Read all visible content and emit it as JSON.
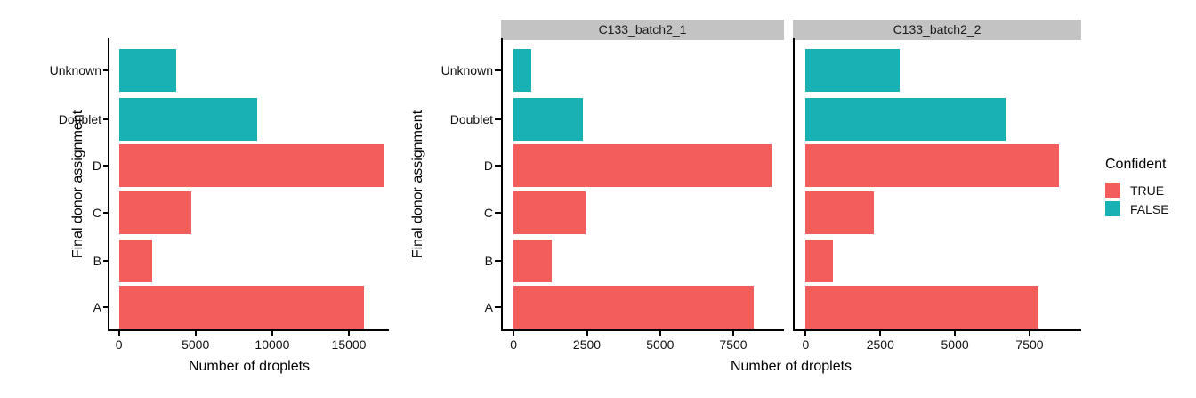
{
  "figure": {
    "background": "#FFFFFF"
  },
  "colors": {
    "confident_true": "#F35E5C",
    "confident_false": "#18B2B5",
    "strip_background": "#C3C3C3",
    "axis": "#000000"
  },
  "chart_data": [
    {
      "id": "combined",
      "type": "bar",
      "orientation": "horizontal",
      "xlabel": "Number of droplets",
      "ylabel": "Final donor assignment",
      "categories_top_to_bottom": [
        "Unknown",
        "Doublet",
        "D",
        "C",
        "B",
        "A"
      ],
      "x_ticks": [
        0,
        5000,
        10000,
        15000
      ],
      "x_range_est": [
        0,
        17600
      ],
      "grid": "off",
      "bars": [
        {
          "category": "Unknown",
          "value": 3750,
          "confident": "FALSE"
        },
        {
          "category": "Doublet",
          "value": 9050,
          "confident": "FALSE"
        },
        {
          "category": "D",
          "value": 17300,
          "confident": "TRUE"
        },
        {
          "category": "C",
          "value": 4750,
          "confident": "TRUE"
        },
        {
          "category": "B",
          "value": 2200,
          "confident": "TRUE"
        },
        {
          "category": "A",
          "value": 16000,
          "confident": "TRUE"
        }
      ]
    },
    {
      "id": "faceted",
      "type": "bar",
      "orientation": "horizontal",
      "xlabel": "Number of droplets",
      "ylabel": "Final donor assignment",
      "categories_top_to_bottom": [
        "Unknown",
        "Doublet",
        "D",
        "C",
        "B",
        "A"
      ],
      "x_range_est": [
        0,
        9200
      ],
      "grid": "off",
      "facets": [
        {
          "strip_label": "C133_batch2_1",
          "x_ticks": [
            0,
            2500,
            5000,
            7500
          ],
          "bars": [
            {
              "category": "Unknown",
              "value": 600,
              "confident": "FALSE"
            },
            {
              "category": "Doublet",
              "value": 2350,
              "confident": "FALSE"
            },
            {
              "category": "D",
              "value": 8800,
              "confident": "TRUE"
            },
            {
              "category": "C",
              "value": 2450,
              "confident": "TRUE"
            },
            {
              "category": "B",
              "value": 1300,
              "confident": "TRUE"
            },
            {
              "category": "A",
              "value": 8200,
              "confident": "TRUE"
            }
          ]
        },
        {
          "strip_label": "C133_batch2_2",
          "x_ticks": [
            0,
            2500,
            5000,
            7500
          ],
          "bars": [
            {
              "category": "Unknown",
              "value": 3150,
              "confident": "FALSE"
            },
            {
              "category": "Doublet",
              "value": 6700,
              "confident": "FALSE"
            },
            {
              "category": "D",
              "value": 8500,
              "confident": "TRUE"
            },
            {
              "category": "C",
              "value": 2300,
              "confident": "TRUE"
            },
            {
              "category": "B",
              "value": 900,
              "confident": "TRUE"
            },
            {
              "category": "A",
              "value": 7800,
              "confident": "TRUE"
            }
          ]
        }
      ],
      "legend": {
        "title": "Confident",
        "position": "right",
        "entries": [
          {
            "label": "TRUE",
            "color": "#F35E5C"
          },
          {
            "label": "FALSE",
            "color": "#18B2B5"
          }
        ]
      }
    }
  ]
}
